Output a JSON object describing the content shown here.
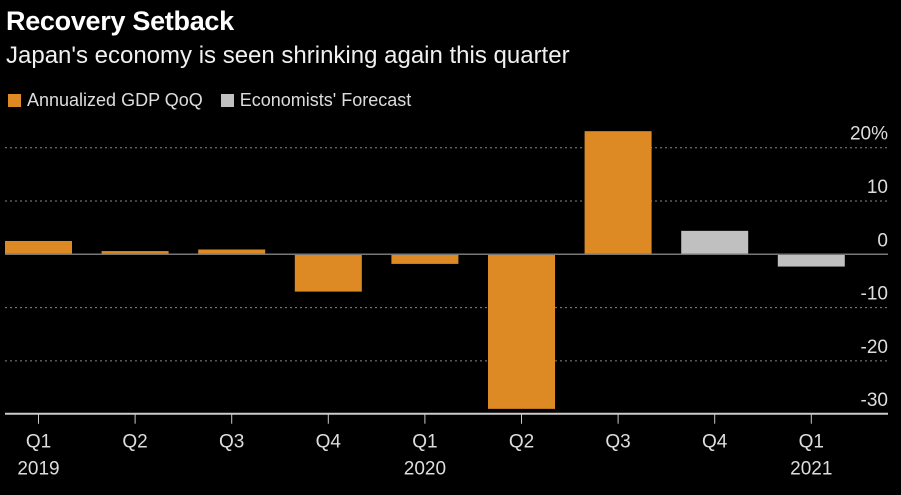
{
  "chart_data": {
    "type": "bar",
    "title": "Recovery Setback",
    "subtitle": "Japan's economy is seen shrinking again this quarter",
    "categories": [
      "Q1",
      "Q2",
      "Q3",
      "Q4",
      "Q1",
      "Q2",
      "Q3",
      "Q4",
      "Q1"
    ],
    "year_labels": [
      "2019",
      "",
      "",
      "",
      "2020",
      "",
      "",
      "",
      "2021"
    ],
    "values": [
      2.5,
      0.6,
      0.9,
      -7.0,
      -1.8,
      -29.0,
      23.1,
      4.4,
      -2.3
    ],
    "series_of_bar": [
      "Annualized GDP QoQ",
      "Annualized GDP QoQ",
      "Annualized GDP QoQ",
      "Annualized GDP QoQ",
      "Annualized GDP QoQ",
      "Annualized GDP QoQ",
      "Annualized GDP QoQ",
      "Economists' Forecast",
      "Economists' Forecast"
    ],
    "legend": [
      {
        "name": "Annualized GDP QoQ",
        "color": "#dd8a24"
      },
      {
        "name": "Economists' Forecast",
        "color": "#c0c0c0"
      }
    ],
    "legend_placement": "top-left",
    "yticks": [
      20,
      10,
      0,
      -10,
      -20,
      -30
    ],
    "ytick_labels": [
      "20%",
      "10",
      "0",
      "-10",
      "-20",
      "-30"
    ],
    "ylim": [
      -30,
      25
    ],
    "grid": true,
    "xlabel": "",
    "ylabel": ""
  }
}
